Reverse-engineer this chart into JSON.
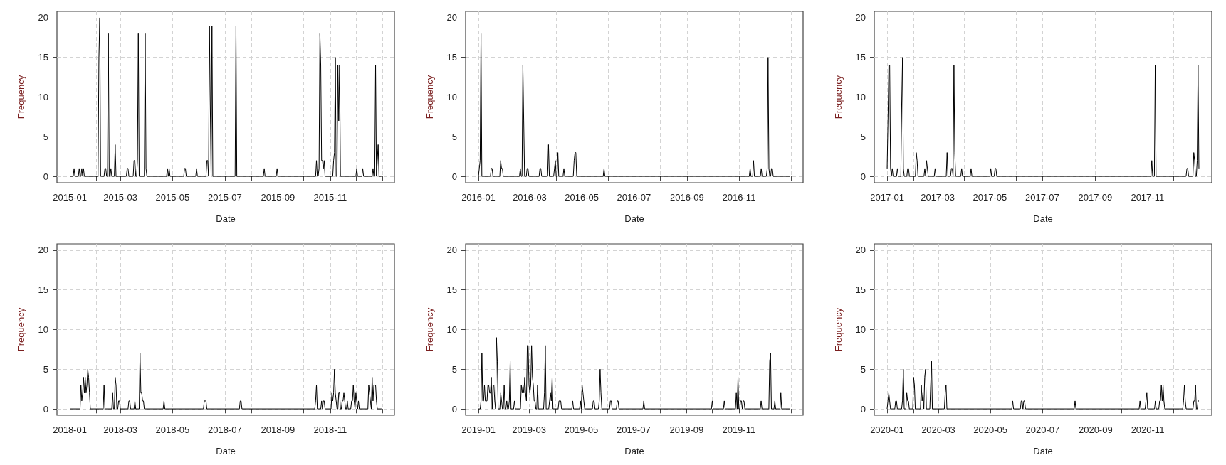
{
  "chart_data": [
    {
      "type": "line",
      "xlabel": "Date",
      "ylabel": "Frequency",
      "color": "#000000",
      "grid": true,
      "xlim": [
        "2014-12-17",
        "2016-01-15"
      ],
      "ylim": [
        -0.8,
        20.8
      ],
      "yticks": [
        0,
        5,
        10,
        15,
        20
      ],
      "xticks": [
        "2015-01",
        {
          "value": "2015-02",
          "label": null
        },
        "2015-03",
        {
          "value": "2015-04",
          "label": null
        },
        "2015-05",
        {
          "value": "2015-06",
          "label": null
        },
        "2015-07",
        {
          "value": "2015-08",
          "label": null
        },
        "2015-09",
        {
          "value": "2015-10",
          "label": null
        },
        "2015-11",
        {
          "value": "2015-12",
          "label": null
        },
        {
          "value": "2016-01",
          "label": null
        }
      ],
      "x": [
        "2015-01-01",
        "2015-01-05",
        "2015-01-06",
        "2015-01-07",
        "2015-01-11",
        "2015-01-12",
        "2015-01-13",
        "2015-01-14",
        "2015-01-15",
        "2015-01-16",
        "2015-01-17",
        "2015-01-18",
        "2015-02-03",
        "2015-02-04",
        "2015-02-05",
        "2015-02-06",
        "2015-02-10",
        "2015-02-11",
        "2015-02-12",
        "2015-02-13",
        "2015-02-14",
        "2015-02-15",
        "2015-02-16",
        "2015-02-17",
        "2015-02-18",
        "2015-02-19",
        "2015-02-22",
        "2015-02-23",
        "2015-02-24",
        "2015-03-08",
        "2015-03-09",
        "2015-03-10",
        "2015-03-11",
        "2015-03-16",
        "2015-03-17",
        "2015-03-18",
        "2015-03-19",
        "2015-03-20",
        "2015-03-21",
        "2015-03-22",
        "2015-03-23",
        "2015-03-29",
        "2015-03-30",
        "2015-03-31",
        "2015-04-01",
        "2015-04-24",
        "2015-04-25",
        "2015-04-26",
        "2015-04-27",
        "2015-04-28",
        "2015-05-14",
        "2015-05-15",
        "2015-05-16",
        "2015-05-17",
        "2015-05-28",
        "2015-05-29",
        "2015-05-30",
        "2015-06-09",
        "2015-06-10",
        "2015-06-11",
        "2015-06-12",
        "2015-06-13",
        "2015-06-14",
        "2015-06-15",
        "2015-06-16",
        "2015-06-17",
        "2015-07-13",
        "2015-07-14",
        "2015-07-15",
        "2015-08-15",
        "2015-08-16",
        "2015-08-17",
        "2015-08-30",
        "2015-08-31",
        "2015-09-01",
        "2015-10-15",
        "2015-10-16",
        "2015-10-17",
        "2015-10-18",
        "2015-10-19",
        "2015-10-20",
        "2015-10-21",
        "2015-10-22",
        "2015-10-23",
        "2015-10-24",
        "2015-10-25",
        "2015-10-26",
        "2015-11-04",
        "2015-11-05",
        "2015-11-06",
        "2015-11-07",
        "2015-11-08",
        "2015-11-09",
        "2015-11-10",
        "2015-11-11",
        "2015-11-12",
        "2015-11-13",
        "2015-12-01",
        "2015-12-02",
        "2015-12-03",
        "2015-12-08",
        "2015-12-09",
        "2015-12-10",
        "2015-12-20",
        "2015-12-21",
        "2015-12-22",
        "2015-12-23",
        "2015-12-24",
        "2015-12-25",
        "2015-12-26",
        "2015-12-27",
        "2015-12-28",
        "2015-12-31"
      ],
      "values": [
        0,
        0,
        1,
        0,
        0,
        1,
        0,
        0,
        1,
        0,
        1,
        0,
        0,
        15,
        20,
        0,
        0,
        1,
        1,
        0,
        0,
        18,
        0,
        0,
        1,
        0,
        0,
        4,
        0,
        0,
        1,
        1,
        0,
        0,
        2,
        2,
        0,
        0,
        2,
        18,
        0,
        0,
        18,
        1,
        0,
        0,
        1,
        0,
        1,
        0,
        0,
        1,
        1,
        0,
        0,
        1,
        0,
        0,
        2,
        2,
        0,
        19,
        9,
        0,
        19,
        0,
        0,
        19,
        0,
        0,
        1,
        0,
        0,
        1,
        0,
        0,
        2,
        0,
        0,
        1,
        18,
        14,
        2,
        2,
        1,
        2,
        0,
        0,
        2,
        3,
        15,
        0,
        0,
        14,
        7,
        14,
        0,
        0,
        1,
        0,
        0,
        1,
        0,
        0,
        1,
        0,
        0,
        14,
        0,
        2,
        4,
        0,
        0
      ]
    },
    {
      "type": "line",
      "xlabel": "Date",
      "ylabel": "Frequency",
      "color": "#000000",
      "grid": true,
      "xlim": [
        "2015-12-17",
        "2017-01-15"
      ],
      "ylim": [
        -0.8,
        20.8
      ],
      "yticks": [
        0,
        5,
        10,
        15,
        20
      ],
      "xticks": [
        "2016-01",
        {
          "value": "2016-02",
          "label": null
        },
        "2016-03",
        {
          "value": "2016-04",
          "label": null
        },
        "2016-05",
        {
          "value": "2016-06",
          "label": null
        },
        "2016-07",
        {
          "value": "2016-08",
          "label": null
        },
        "2016-09",
        {
          "value": "2016-10",
          "label": null
        },
        "2016-11",
        {
          "value": "2016-12",
          "label": null
        },
        {
          "value": "2017-01",
          "label": null
        }
      ],
      "x": [
        "2016-01-01",
        "2016-01-02",
        "2016-01-03",
        "2016-01-04",
        "2016-01-05",
        "2016-01-15",
        "2016-01-16",
        "2016-01-17",
        "2016-01-18",
        "2016-01-26",
        "2016-01-27",
        "2016-01-28",
        "2016-01-29",
        "2016-01-30",
        "2016-02-18",
        "2016-02-19",
        "2016-02-20",
        "2016-02-21",
        "2016-02-22",
        "2016-02-23",
        "2016-02-24",
        "2016-02-26",
        "2016-02-27",
        "2016-02-28",
        "2016-02-29",
        "2016-03-12",
        "2016-03-13",
        "2016-03-14",
        "2016-03-15",
        "2016-03-22",
        "2016-03-23",
        "2016-03-24",
        "2016-03-29",
        "2016-03-30",
        "2016-03-31",
        "2016-04-01",
        "2016-04-02",
        "2016-04-03",
        "2016-04-04",
        "2016-04-09",
        "2016-04-10",
        "2016-04-11",
        "2016-04-21",
        "2016-04-22",
        "2016-04-23",
        "2016-04-24",
        "2016-04-25",
        "2016-05-26",
        "2016-05-27",
        "2016-05-28",
        "2016-11-13",
        "2016-11-14",
        "2016-11-15",
        "2016-11-17",
        "2016-11-18",
        "2016-11-19",
        "2016-11-26",
        "2016-11-27",
        "2016-11-28",
        "2016-12-03",
        "2016-12-04",
        "2016-12-05",
        "2016-12-06",
        "2016-12-07",
        "2016-12-08",
        "2016-12-09",
        "2016-12-10",
        "2016-12-11",
        "2016-12-31"
      ],
      "values": [
        0,
        1,
        2,
        18,
        0,
        0,
        1,
        1,
        0,
        0,
        2,
        1,
        1,
        0,
        0,
        1,
        0,
        0,
        14,
        7,
        0,
        0,
        1,
        1,
        0,
        0,
        1,
        1,
        0,
        0,
        4,
        0,
        0,
        1,
        2,
        0,
        0,
        3,
        0,
        0,
        1,
        0,
        0,
        2,
        3,
        3,
        0,
        0,
        1,
        0,
        0,
        1,
        0,
        0,
        2,
        0,
        0,
        1,
        0,
        0,
        1,
        15,
        1,
        0,
        0,
        1,
        1,
        0,
        0
      ]
    },
    {
      "type": "line",
      "xlabel": "Date",
      "ylabel": "Frequency",
      "color": "#000000",
      "grid": true,
      "xlim": [
        "2016-12-17",
        "2018-01-15"
      ],
      "ylim": [
        -0.8,
        20.8
      ],
      "yticks": [
        0,
        5,
        10,
        15,
        20
      ],
      "xticks": [
        "2017-01",
        {
          "value": "2017-02",
          "label": null
        },
        "2017-03",
        {
          "value": "2017-04",
          "label": null
        },
        "2017-05",
        {
          "value": "2017-06",
          "label": null
        },
        "2017-07",
        {
          "value": "2017-08",
          "label": null
        },
        "2017-09",
        {
          "value": "2017-10",
          "label": null
        },
        "2017-11",
        {
          "value": "2017-12",
          "label": null
        },
        {
          "value": "2018-01",
          "label": null
        }
      ],
      "x": [
        "2017-01-01",
        "2017-01-02",
        "2017-01-03",
        "2017-01-04",
        "2017-01-05",
        "2017-01-06",
        "2017-01-07",
        "2017-01-08",
        "2017-01-12",
        "2017-01-13",
        "2017-01-14",
        "2017-01-17",
        "2017-01-18",
        "2017-01-19",
        "2017-01-20",
        "2017-01-21",
        "2017-01-24",
        "2017-01-25",
        "2017-01-26",
        "2017-01-27",
        "2017-02-03",
        "2017-02-04",
        "2017-02-05",
        "2017-02-06",
        "2017-02-13",
        "2017-02-14",
        "2017-02-15",
        "2017-02-16",
        "2017-02-17",
        "2017-02-18",
        "2017-02-25",
        "2017-02-26",
        "2017-02-27",
        "2017-03-11",
        "2017-03-12",
        "2017-03-13",
        "2017-03-16",
        "2017-03-17",
        "2017-03-18",
        "2017-03-19",
        "2017-03-20",
        "2017-03-21",
        "2017-03-22",
        "2017-03-28",
        "2017-03-29",
        "2017-03-30",
        "2017-04-08",
        "2017-04-09",
        "2017-04-10",
        "2017-05-01",
        "2017-05-02",
        "2017-05-03",
        "2017-05-06",
        "2017-05-07",
        "2017-05-08",
        "2017-05-09",
        "2017-11-05",
        "2017-11-06",
        "2017-11-07",
        "2017-11-09",
        "2017-11-10",
        "2017-11-11",
        "2017-12-16",
        "2017-12-17",
        "2017-12-18",
        "2017-12-19",
        "2017-12-24",
        "2017-12-25",
        "2017-12-26",
        "2017-12-27",
        "2017-12-28",
        "2017-12-29",
        "2017-12-30",
        "2017-12-31"
      ],
      "values": [
        1,
        7,
        14,
        14,
        1,
        0,
        1,
        0,
        0,
        1,
        0,
        0,
        9,
        15,
        1,
        0,
        0,
        1,
        1,
        0,
        0,
        3,
        2,
        0,
        0,
        1,
        0,
        2,
        1,
        0,
        0,
        1,
        0,
        0,
        3,
        0,
        0,
        1,
        1,
        0,
        14,
        3,
        0,
        0,
        1,
        0,
        0,
        1,
        0,
        0,
        1,
        0,
        0,
        1,
        1,
        0,
        0,
        2,
        0,
        0,
        14,
        0,
        0,
        1,
        1,
        0,
        0,
        3,
        2,
        0,
        0,
        2,
        14,
        1
      ]
    },
    {
      "type": "line",
      "xlabel": "Date",
      "ylabel": "Frequency",
      "color": "#000000",
      "grid": true,
      "xlim": [
        "2017-12-17",
        "2019-01-15"
      ],
      "ylim": [
        -0.8,
        20.8
      ],
      "yticks": [
        0,
        5,
        10,
        15,
        20
      ],
      "xticks": [
        "2018-01",
        {
          "value": "2018-02",
          "label": null
        },
        "2018-03",
        {
          "value": "2018-04",
          "label": null
        },
        "2018-05",
        {
          "value": "2018-06",
          "label": null
        },
        "2018-07",
        {
          "value": "2018-08",
          "label": null
        },
        "2018-09",
        {
          "value": "2018-10",
          "label": null
        },
        "2018-11",
        {
          "value": "2018-12",
          "label": null
        },
        {
          "value": "2019-01",
          "label": null
        }
      ],
      "x": [
        "2018-01-01",
        "2018-01-13",
        "2018-01-14",
        "2018-01-15",
        "2018-01-16",
        "2018-01-17",
        "2018-01-18",
        "2018-01-19",
        "2018-01-20",
        "2018-01-21",
        "2018-01-22",
        "2018-01-23",
        "2018-01-24",
        "2018-01-25",
        "2018-02-09",
        "2018-02-10",
        "2018-02-11",
        "2018-02-19",
        "2018-02-20",
        "2018-02-21",
        "2018-02-22",
        "2018-02-23",
        "2018-02-24",
        "2018-02-25",
        "2018-02-26",
        "2018-02-27",
        "2018-02-28",
        "2018-03-01",
        "2018-03-10",
        "2018-03-11",
        "2018-03-12",
        "2018-03-13",
        "2018-03-17",
        "2018-03-18",
        "2018-03-19",
        "2018-03-23",
        "2018-03-24",
        "2018-03-25",
        "2018-03-26",
        "2018-03-27",
        "2018-03-28",
        "2018-03-29",
        "2018-04-20",
        "2018-04-21",
        "2018-04-22",
        "2018-06-06",
        "2018-06-07",
        "2018-06-08",
        "2018-06-09",
        "2018-06-10",
        "2018-07-18",
        "2018-07-19",
        "2018-07-20",
        "2018-07-21",
        "2018-10-14",
        "2018-10-15",
        "2018-10-16",
        "2018-10-17",
        "2018-10-21",
        "2018-10-22",
        "2018-10-23",
        "2018-10-24",
        "2018-10-25",
        "2018-10-26",
        "2018-11-02",
        "2018-11-03",
        "2018-11-04",
        "2018-11-05",
        "2018-11-06",
        "2018-11-07",
        "2018-11-08",
        "2018-11-09",
        "2018-11-10",
        "2018-11-11",
        "2018-11-12",
        "2018-11-13",
        "2018-11-14",
        "2018-11-15",
        "2018-11-16",
        "2018-11-17",
        "2018-11-18",
        "2018-11-19",
        "2018-11-20",
        "2018-11-21",
        "2018-11-22",
        "2018-11-25",
        "2018-11-26",
        "2018-11-27",
        "2018-11-28",
        "2018-11-29",
        "2018-11-30",
        "2018-12-01",
        "2018-12-02",
        "2018-12-03",
        "2018-12-04",
        "2018-12-05",
        "2018-12-15",
        "2018-12-16",
        "2018-12-17",
        "2018-12-18",
        "2018-12-19",
        "2018-12-20",
        "2018-12-21",
        "2018-12-22",
        "2018-12-23",
        "2018-12-24",
        "2018-12-25",
        "2018-12-26",
        "2018-12-31"
      ],
      "values": [
        0,
        0,
        3,
        1,
        2,
        4,
        2,
        4,
        2,
        3,
        5,
        4,
        2,
        0,
        0,
        3,
        0,
        0,
        2,
        0,
        0,
        4,
        3,
        0,
        0,
        1,
        1,
        0,
        0,
        1,
        1,
        0,
        0,
        1,
        0,
        0,
        7,
        2,
        2,
        1,
        1,
        0,
        0,
        1,
        0,
        0,
        1,
        1,
        1,
        0,
        0,
        1,
        1,
        0,
        0,
        1,
        3,
        0,
        0,
        1,
        0,
        1,
        1,
        0,
        0,
        2,
        1,
        2,
        5,
        2,
        1,
        0,
        0,
        2,
        2,
        0,
        0,
        1,
        1,
        2,
        1,
        0,
        0,
        1,
        0,
        0,
        1,
        1,
        3,
        1,
        0,
        2,
        1,
        0,
        1,
        0,
        0,
        3,
        2,
        1,
        0,
        4,
        1,
        3,
        3,
        3,
        1,
        0,
        0
      ]
    },
    {
      "type": "line",
      "xlabel": "Date",
      "ylabel": "Frequency",
      "color": "#000000",
      "grid": true,
      "xlim": [
        "2018-12-17",
        "2020-01-15"
      ],
      "ylim": [
        -0.8,
        20.8
      ],
      "yticks": [
        0,
        5,
        10,
        15,
        20
      ],
      "xticks": [
        "2019-01",
        {
          "value": "2019-02",
          "label": null
        },
        "2019-03",
        {
          "value": "2019-04",
          "label": null
        },
        "2019-05",
        {
          "value": "2019-06",
          "label": null
        },
        "2019-07",
        {
          "value": "2019-08",
          "label": null
        },
        "2019-09",
        {
          "value": "2019-10",
          "label": null
        },
        "2019-11",
        {
          "value": "2019-12",
          "label": null
        },
        {
          "value": "2020-01",
          "label": null
        }
      ],
      "x": [
        "2019-01-01",
        "2019-01-03",
        "2019-01-04",
        "2019-01-05",
        "2019-01-06",
        "2019-01-07",
        "2019-01-08",
        "2019-01-09",
        "2019-01-10",
        "2019-01-11",
        "2019-01-12",
        "2019-01-13",
        "2019-01-14",
        "2019-01-15",
        "2019-01-16",
        "2019-01-17",
        "2019-01-18",
        "2019-01-19",
        "2019-01-20",
        "2019-01-21",
        "2019-01-22",
        "2019-01-23",
        "2019-01-24",
        "2019-01-26",
        "2019-01-27",
        "2019-01-28",
        "2019-01-29",
        "2019-01-30",
        "2019-01-31",
        "2019-02-01",
        "2019-02-02",
        "2019-02-03",
        "2019-02-04",
        "2019-02-05",
        "2019-02-06",
        "2019-02-07",
        "2019-02-08",
        "2019-02-11",
        "2019-02-12",
        "2019-02-13",
        "2019-02-19",
        "2019-02-20",
        "2019-02-21",
        "2019-02-22",
        "2019-02-23",
        "2019-02-24",
        "2019-02-25",
        "2019-02-26",
        "2019-02-27",
        "2019-02-28",
        "2019-03-01",
        "2019-03-02",
        "2019-03-03",
        "2019-03-04",
        "2019-03-05",
        "2019-03-06",
        "2019-03-07",
        "2019-03-08",
        "2019-03-09",
        "2019-03-10",
        "2019-03-11",
        "2019-03-12",
        "2019-03-18",
        "2019-03-19",
        "2019-03-20",
        "2019-03-21",
        "2019-03-24",
        "2019-03-25",
        "2019-03-26",
        "2019-03-27",
        "2019-03-28",
        "2019-03-29",
        "2019-04-04",
        "2019-04-05",
        "2019-04-06",
        "2019-04-07",
        "2019-04-08",
        "2019-04-20",
        "2019-04-21",
        "2019-04-22",
        "2019-04-29",
        "2019-04-30",
        "2019-05-01",
        "2019-05-02",
        "2019-05-03",
        "2019-05-04",
        "2019-05-05",
        "2019-05-14",
        "2019-05-15",
        "2019-05-16",
        "2019-05-17",
        "2019-05-21",
        "2019-05-22",
        "2019-05-23",
        "2019-05-24",
        "2019-05-25",
        "2019-06-03",
        "2019-06-04",
        "2019-06-05",
        "2019-06-06",
        "2019-06-11",
        "2019-06-12",
        "2019-06-13",
        "2019-06-14",
        "2019-07-12",
        "2019-07-13",
        "2019-07-14",
        "2019-09-30",
        "2019-10-01",
        "2019-10-02",
        "2019-10-14",
        "2019-10-15",
        "2019-10-16",
        "2019-10-28",
        "2019-10-29",
        "2019-10-30",
        "2019-10-31",
        "2019-11-01",
        "2019-11-02",
        "2019-11-03",
        "2019-11-04",
        "2019-11-05",
        "2019-11-06",
        "2019-11-07",
        "2019-11-08",
        "2019-11-26",
        "2019-11-27",
        "2019-11-28",
        "2019-12-06",
        "2019-12-07",
        "2019-12-08",
        "2019-12-09",
        "2019-12-12",
        "2019-12-13",
        "2019-12-14",
        "2019-12-19",
        "2019-12-20",
        "2019-12-21",
        "2019-12-31"
      ],
      "values": [
        0,
        0,
        1,
        7,
        1,
        1,
        3,
        1,
        1,
        1,
        3,
        3,
        2,
        2,
        4,
        0,
        3,
        3,
        1,
        0,
        9,
        6,
        0,
        0,
        2,
        1,
        0,
        0,
        3,
        0,
        0,
        1,
        0,
        0,
        1,
        6,
        0,
        0,
        1,
        0,
        0,
        3,
        2,
        3,
        2,
        4,
        2,
        1,
        8,
        8,
        3,
        2,
        3,
        8,
        4,
        3,
        1,
        1,
        0,
        0,
        3,
        0,
        0,
        2,
        8,
        0,
        0,
        1,
        2,
        1,
        4,
        0,
        0,
        1,
        1,
        1,
        0,
        0,
        1,
        0,
        0,
        1,
        0,
        3,
        2,
        1,
        0,
        0,
        1,
        1,
        0,
        0,
        1,
        5,
        2,
        0,
        0,
        1,
        1,
        0,
        0,
        1,
        1,
        0,
        0,
        1,
        0,
        0,
        1,
        0,
        0,
        1,
        0,
        0,
        2,
        0,
        4,
        0,
        0,
        1,
        1,
        0,
        1,
        1,
        0,
        0,
        1,
        0,
        0,
        6,
        7,
        0,
        0,
        1,
        0,
        0,
        2,
        0,
        0
      ]
    },
    {
      "type": "line",
      "xlabel": "Date",
      "ylabel": "Frequency",
      "color": "#000000",
      "grid": true,
      "xlim": [
        "2019-12-17",
        "2021-01-15"
      ],
      "ylim": [
        -0.8,
        20.8
      ],
      "yticks": [
        0,
        5,
        10,
        15,
        20
      ],
      "xticks": [
        "2020-01",
        {
          "value": "2020-02",
          "label": null
        },
        "2020-03",
        {
          "value": "2020-04",
          "label": null
        },
        "2020-05",
        {
          "value": "2020-06",
          "label": null
        },
        "2020-07",
        {
          "value": "2020-08",
          "label": null
        },
        "2020-09",
        {
          "value": "2020-10",
          "label": null
        },
        "2020-11",
        {
          "value": "2020-12",
          "label": null
        },
        {
          "value": "2021-01",
          "label": null
        }
      ],
      "x": [
        "2020-01-01",
        "2020-01-02",
        "2020-01-03",
        "2020-01-04",
        "2020-01-05",
        "2020-01-10",
        "2020-01-11",
        "2020-01-12",
        "2020-01-13",
        "2020-01-18",
        "2020-01-19",
        "2020-01-20",
        "2020-01-21",
        "2020-01-23",
        "2020-01-24",
        "2020-01-25",
        "2020-01-26",
        "2020-01-27",
        "2020-01-31",
        "2020-02-01",
        "2020-02-02",
        "2020-02-03",
        "2020-02-09",
        "2020-02-10",
        "2020-02-11",
        "2020-02-12",
        "2020-02-13",
        "2020-02-14",
        "2020-02-15",
        "2020-02-16",
        "2020-02-20",
        "2020-02-21",
        "2020-02-22",
        "2020-02-23",
        "2020-03-08",
        "2020-03-09",
        "2020-03-10",
        "2020-03-11",
        "2020-05-26",
        "2020-05-27",
        "2020-05-28",
        "2020-06-05",
        "2020-06-06",
        "2020-06-07",
        "2020-06-08",
        "2020-06-09",
        "2020-06-10",
        "2020-06-11",
        "2020-08-07",
        "2020-08-08",
        "2020-08-09",
        "2020-10-22",
        "2020-10-23",
        "2020-10-24",
        "2020-10-29",
        "2020-10-30",
        "2020-10-31",
        "2020-11-01",
        "2020-11-09",
        "2020-11-10",
        "2020-11-11",
        "2020-11-14",
        "2020-11-15",
        "2020-11-16",
        "2020-11-17",
        "2020-11-18",
        "2020-11-19",
        "2020-11-20",
        "2020-11-21",
        "2020-12-12",
        "2020-12-13",
        "2020-12-14",
        "2020-12-15",
        "2020-12-16",
        "2020-12-24",
        "2020-12-25",
        "2020-12-26",
        "2020-12-27",
        "2020-12-28",
        "2020-12-29",
        "2020-12-30",
        "2020-12-31"
      ],
      "values": [
        0,
        1,
        2,
        1,
        0,
        0,
        1,
        1,
        0,
        0,
        1,
        5,
        0,
        0,
        2,
        1,
        1,
        0,
        0,
        4,
        3,
        0,
        0,
        3,
        1,
        2,
        0,
        4,
        5,
        0,
        0,
        3,
        6,
        0,
        0,
        2,
        3,
        0,
        0,
        1,
        0,
        0,
        1,
        1,
        0,
        1,
        1,
        0,
        0,
        1,
        0,
        0,
        1,
        0,
        0,
        1,
        2,
        0,
        0,
        1,
        0,
        0,
        1,
        1,
        3,
        1,
        3,
        1,
        0,
        0,
        1,
        3,
        1,
        0,
        0,
        1,
        1,
        3,
        0,
        0,
        1,
        1
      ]
    }
  ]
}
